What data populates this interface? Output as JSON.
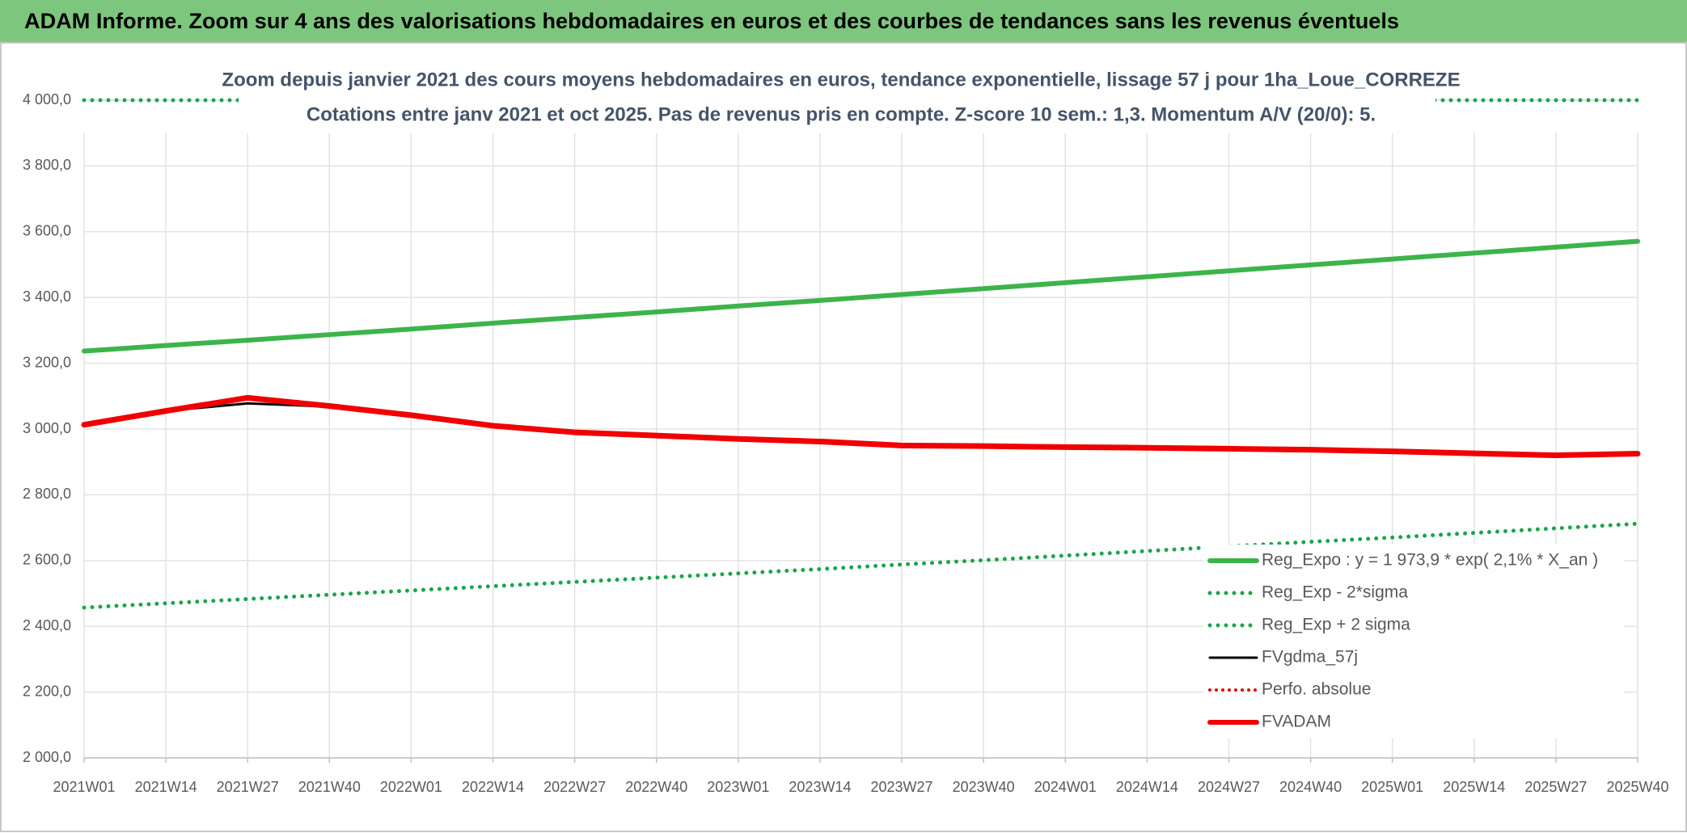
{
  "header": {
    "title": "ADAM Informe. Zoom sur 4 ans des valorisations hebdomadaires en euros et des courbes de tendances sans les revenus éventuels"
  },
  "chart_data": {
    "type": "line",
    "title": "Zoom depuis janvier 2021 des cours moyens hebdomadaires en euros, tendance exponentielle, lissage 57 j pour 1ha_Loue_CORREZE",
    "subtitle": "Cotations entre janv 2021 et oct 2025. Pas de revenus pris en compte. Z-score 10 sem.: 1,3. Momentum A/V (20/0): 5.",
    "categories": [
      "2021W01",
      "2021W14",
      "2021W27",
      "2021W40",
      "2022W01",
      "2022W14",
      "2022W27",
      "2022W40",
      "2023W01",
      "2023W14",
      "2023W27",
      "2023W40",
      "2024W01",
      "2024W14",
      "2024W27",
      "2024W40",
      "2025W01",
      "2025W14",
      "2025W27",
      "2025W40"
    ],
    "series": [
      {
        "name": "Reg_Expo : y = 1 973,9 * exp( 2,1% *  X_an )",
        "color": "#3cb44b",
        "line_style": "solid",
        "line_width": 6,
        "values": [
          3237,
          3254,
          3270,
          3287,
          3304,
          3322,
          3339,
          3356,
          3374,
          3391,
          3409,
          3427,
          3445,
          3463,
          3481,
          3499,
          3517,
          3535,
          3553,
          3571
        ]
      },
      {
        "name": "Reg_Exp - 2*sigma",
        "color": "#1aa64a",
        "line_style": "dotted",
        "line_width": 5,
        "values": [
          2457,
          2470,
          2483,
          2496,
          2509,
          2522,
          2535,
          2548,
          2561,
          2574,
          2588,
          2601,
          2615,
          2629,
          2643,
          2657,
          2670,
          2684,
          2698,
          2712
        ]
      },
      {
        "name": "Reg_Exp + 2 sigma",
        "color": "#1aa64a",
        "line_style": "dotted",
        "line_width": 5,
        "values": [
          4000,
          4000,
          4000,
          4000,
          4000,
          4000,
          4000,
          4000,
          4000,
          4000,
          4000,
          4000,
          4000,
          4000,
          4000,
          4000,
          4000,
          4000,
          4000,
          4000
        ]
      },
      {
        "name": "FVgdma_57j",
        "color": "#000000",
        "line_style": "solid",
        "line_width": 3,
        "values": [
          3013,
          3055,
          3078,
          3068,
          3042,
          3010,
          2990,
          2980,
          2970,
          2962,
          2950,
          2948,
          2945,
          2943,
          2940,
          2937,
          2932,
          2926,
          2920,
          2925
        ]
      },
      {
        "name": "Perfo. absolue",
        "color": "#e00000",
        "line_style": "dotted",
        "line_width": 4,
        "values": [
          null,
          null,
          null,
          null,
          null,
          null,
          null,
          null,
          null,
          null,
          null,
          null,
          null,
          null,
          null,
          null,
          null,
          null,
          null,
          null
        ]
      },
      {
        "name": "FVADAM",
        "color": "#f00000",
        "line_style": "solid",
        "line_width": 7,
        "values": [
          3013,
          3055,
          3095,
          3070,
          3042,
          3010,
          2990,
          2980,
          2970,
          2962,
          2950,
          2948,
          2945,
          2943,
          2940,
          2937,
          2932,
          2926,
          2920,
          2925
        ]
      }
    ],
    "ylim": [
      2000,
      4000
    ],
    "yticks": [
      {
        "value": 2000,
        "label": "2 000,0"
      },
      {
        "value": 2200,
        "label": "2 200,0"
      },
      {
        "value": 2400,
        "label": "2 400,0"
      },
      {
        "value": 2600,
        "label": "2 600,0"
      },
      {
        "value": 2800,
        "label": "2 800,0"
      },
      {
        "value": 3000,
        "label": "3 000,0"
      },
      {
        "value": 3200,
        "label": "3 200,0"
      },
      {
        "value": 3400,
        "label": "3 400,0"
      },
      {
        "value": 3600,
        "label": "3 600,0"
      },
      {
        "value": 3800,
        "label": "3 800,0"
      },
      {
        "value": 4000,
        "label": "4 000,0"
      }
    ],
    "grid": true,
    "legend": "lower right"
  }
}
